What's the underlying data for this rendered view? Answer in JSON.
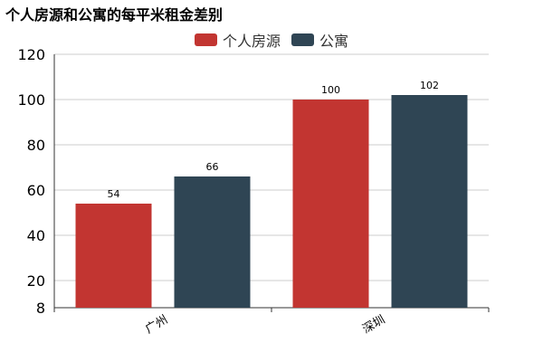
{
  "chart_data": {
    "type": "bar",
    "title": "个人房源和公寓的每平米租金差别",
    "categories": [
      "广州",
      "深圳"
    ],
    "series": [
      {
        "name": "个人房源",
        "values": [
          54,
          100
        ],
        "color": "#c23531"
      },
      {
        "name": "公寓",
        "values": [
          66,
          102
        ],
        "color": "#2f4554"
      }
    ],
    "y_ticks": [
      8,
      20,
      40,
      60,
      80,
      100,
      120
    ],
    "ylim": [
      8,
      120
    ],
    "grid": true,
    "legend_position": "top-center"
  }
}
